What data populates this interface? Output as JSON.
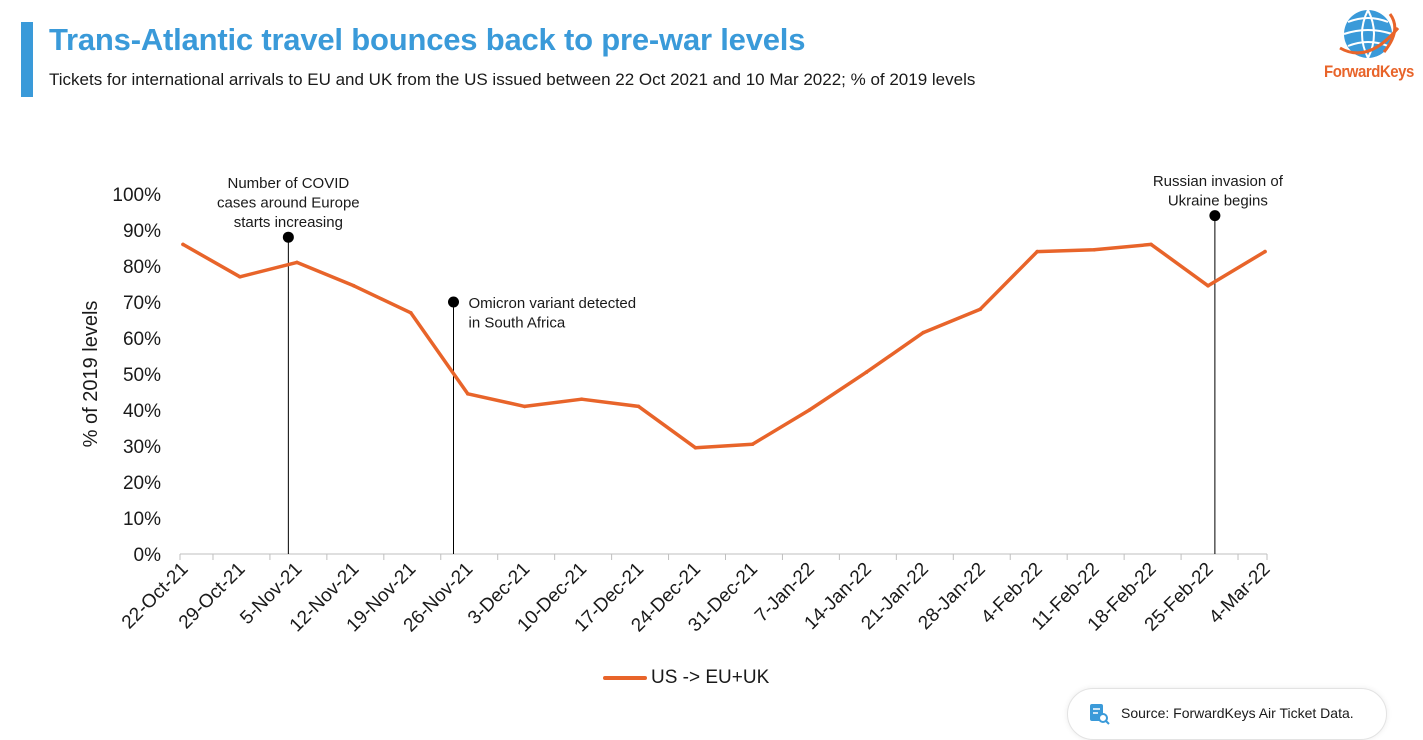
{
  "header": {
    "title": "Trans-Atlantic travel bounces back to pre-war levels",
    "subtitle": "Tickets for international arrivals to EU and UK from the US issued between 22 Oct 2021 and 10 Mar 2022; % of 2019 levels"
  },
  "logo": {
    "text": "ForwardKeys",
    "icon": "globe-icon"
  },
  "colors": {
    "accent": "#3a9ad9",
    "series": "#e8642a",
    "text": "#1a1a1a",
    "axis": "#bfbfbf"
  },
  "chart_data": {
    "type": "line",
    "ylabel": "% of 2019 levels",
    "xlabel": "",
    "ylim": [
      0,
      100
    ],
    "yticks": [
      0,
      10,
      20,
      30,
      40,
      50,
      60,
      70,
      80,
      90,
      100
    ],
    "ytick_labels": [
      "0%",
      "10%",
      "20%",
      "30%",
      "40%",
      "50%",
      "60%",
      "70%",
      "80%",
      "90%",
      "100%"
    ],
    "categories": [
      "22-Oct-21",
      "29-Oct-21",
      "5-Nov-21",
      "12-Nov-21",
      "19-Nov-21",
      "26-Nov-21",
      "3-Dec-21",
      "10-Dec-21",
      "17-Dec-21",
      "24-Dec-21",
      "31-Dec-21",
      "7-Jan-22",
      "14-Jan-22",
      "21-Jan-22",
      "28-Jan-22",
      "4-Feb-22",
      "11-Feb-22",
      "18-Feb-22",
      "25-Feb-22",
      "4-Mar-22"
    ],
    "series": [
      {
        "name": "US -> EU+UK",
        "values": [
          86,
          77,
          81,
          74.5,
          67,
          44.5,
          41,
          43,
          41,
          29.5,
          30.5,
          40,
          50.5,
          61.5,
          68,
          84,
          84.5,
          86,
          74.5,
          84
        ]
      }
    ],
    "grid": false,
    "legend": "bottom-center",
    "annotations": [
      {
        "lines": [
          "Number of COVID",
          "cases around Europe",
          "starts increasing"
        ],
        "x_index": 1.85,
        "y": 88
      },
      {
        "lines": [
          "Omicron variant detected",
          "in South Africa"
        ],
        "x_index": 4.75,
        "y": 70
      },
      {
        "lines": [
          "Russian invasion of",
          "Ukraine begins"
        ],
        "x_index": 18.12,
        "y": 94
      }
    ]
  },
  "legend": {
    "label": "US -> EU+UK"
  },
  "source": {
    "text": "Source: ForwardKeys Air Ticket Data.",
    "icon": "document-search-icon"
  }
}
